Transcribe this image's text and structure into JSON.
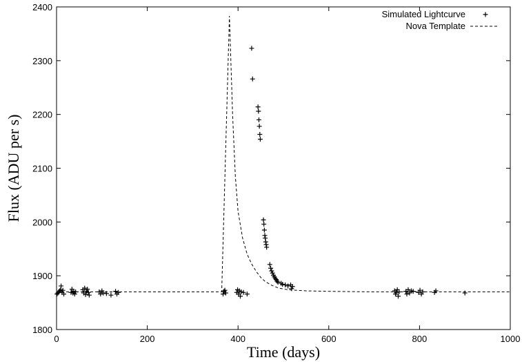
{
  "chart_data": {
    "type": "scatter",
    "title": "",
    "xlabel": "Time (days)",
    "ylabel": "Flux (ADU per s)",
    "xlim": [
      0,
      1000
    ],
    "ylim": [
      1800,
      2400
    ],
    "x_ticks": [
      0,
      200,
      400,
      600,
      800,
      1000
    ],
    "y_ticks": [
      1800,
      1900,
      2000,
      2100,
      2200,
      2300,
      2400
    ],
    "grid": false,
    "legend_position": "top-right",
    "series": [
      {
        "name": "Simulated Lightcurve",
        "marker": "plus",
        "points": [
          [
            1,
            1866
          ],
          [
            3,
            1868
          ],
          [
            5,
            1870
          ],
          [
            7,
            1872
          ],
          [
            9,
            1874
          ],
          [
            10,
            1881
          ],
          [
            12,
            1869
          ],
          [
            14,
            1873
          ],
          [
            16,
            1866
          ],
          [
            32,
            1869
          ],
          [
            34,
            1875
          ],
          [
            36,
            1868
          ],
          [
            38,
            1871
          ],
          [
            40,
            1866
          ],
          [
            42,
            1870
          ],
          [
            58,
            1874
          ],
          [
            60,
            1868
          ],
          [
            62,
            1877
          ],
          [
            64,
            1865
          ],
          [
            66,
            1871
          ],
          [
            68,
            1875
          ],
          [
            70,
            1869
          ],
          [
            72,
            1864
          ],
          [
            94,
            1870
          ],
          [
            97,
            1866
          ],
          [
            100,
            1872
          ],
          [
            103,
            1868
          ],
          [
            110,
            1867
          ],
          [
            120,
            1864
          ],
          [
            130,
            1871
          ],
          [
            133,
            1866
          ],
          [
            136,
            1869
          ],
          [
            367,
            1866
          ],
          [
            369,
            1871
          ],
          [
            371,
            1873
          ],
          [
            373,
            1868
          ],
          [
            397,
            1869
          ],
          [
            399,
            1874
          ],
          [
            401,
            1866
          ],
          [
            403,
            1872
          ],
          [
            405,
            1862
          ],
          [
            407,
            1870
          ],
          [
            412,
            1869
          ],
          [
            420,
            1866
          ],
          [
            430,
            2323
          ],
          [
            432,
            2266
          ],
          [
            444,
            2214
          ],
          [
            445,
            2206
          ],
          [
            446,
            2190
          ],
          [
            447,
            2178
          ],
          [
            448,
            2163
          ],
          [
            449,
            2154
          ],
          [
            456,
            2004
          ],
          [
            457,
            1996
          ],
          [
            458,
            1985
          ],
          [
            459,
            1975
          ],
          [
            460,
            1970
          ],
          [
            461,
            1963
          ],
          [
            462,
            1958
          ],
          [
            463,
            1953
          ],
          [
            470,
            1921
          ],
          [
            472,
            1914
          ],
          [
            474,
            1909
          ],
          [
            476,
            1905
          ],
          [
            478,
            1901
          ],
          [
            480,
            1898
          ],
          [
            482,
            1895
          ],
          [
            484,
            1893
          ],
          [
            486,
            1890
          ],
          [
            488,
            1888
          ],
          [
            495,
            1886
          ],
          [
            498,
            1884
          ],
          [
            504,
            1883
          ],
          [
            510,
            1881
          ],
          [
            516,
            1883
          ],
          [
            518,
            1876
          ],
          [
            520,
            1880
          ],
          [
            745,
            1872
          ],
          [
            747,
            1866
          ],
          [
            749,
            1869
          ],
          [
            751,
            1874
          ],
          [
            753,
            1862
          ],
          [
            755,
            1870
          ],
          [
            770,
            1871
          ],
          [
            772,
            1866
          ],
          [
            775,
            1874
          ],
          [
            778,
            1868
          ],
          [
            782,
            1872
          ],
          [
            786,
            1871
          ],
          [
            798,
            1869
          ],
          [
            801,
            1873
          ],
          [
            804,
            1866
          ],
          [
            807,
            1870
          ],
          [
            833,
            1869
          ],
          [
            836,
            1872
          ],
          [
            900,
            1868
          ]
        ]
      },
      {
        "name": "Nova Template",
        "line_style": "dashed",
        "points": [
          [
            0,
            1870
          ],
          [
            364,
            1870
          ],
          [
            381,
            2383
          ],
          [
            388,
            2200
          ],
          [
            394,
            2085
          ],
          [
            400,
            2020
          ],
          [
            410,
            1970
          ],
          [
            420,
            1940
          ],
          [
            430,
            1922
          ],
          [
            440,
            1908
          ],
          [
            450,
            1897
          ],
          [
            460,
            1889
          ],
          [
            475,
            1882
          ],
          [
            490,
            1877
          ],
          [
            510,
            1874
          ],
          [
            550,
            1872
          ],
          [
            600,
            1871
          ],
          [
            700,
            1870
          ],
          [
            1000,
            1870
          ]
        ]
      }
    ]
  }
}
